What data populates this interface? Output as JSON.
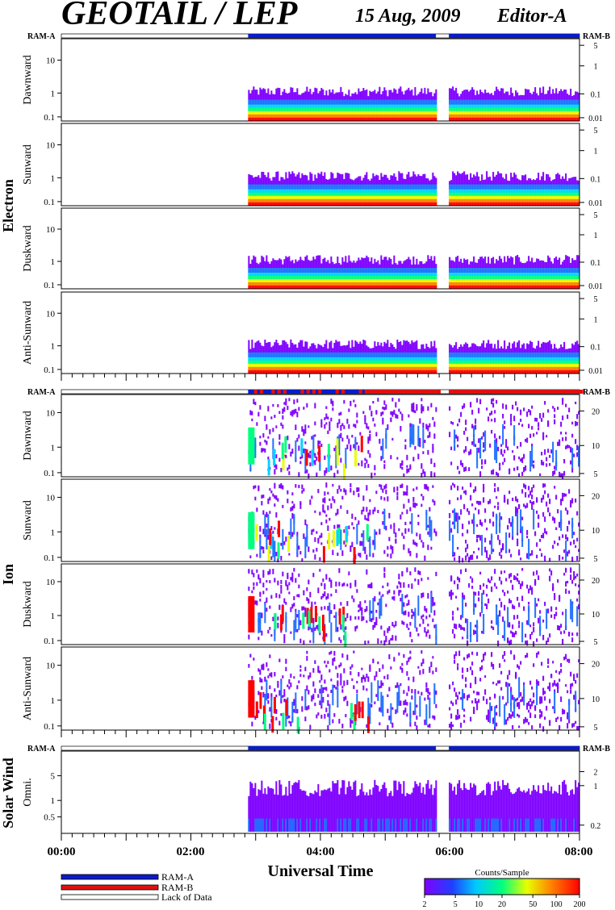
{
  "header": {
    "title": "GEOTAIL / LEP",
    "date": "15 Aug, 2009",
    "editor": "Editor-A"
  },
  "chart_data": {
    "type": "heatmap",
    "x_range_hours": [
      0,
      8
    ],
    "x_ticks": [
      "00:00",
      "02:00",
      "04:00",
      "06:00",
      "08:00"
    ],
    "xlabel": "Universal Time",
    "data_coverage": [
      {
        "start": "02:53",
        "end": "05:47"
      },
      {
        "start": "05:59",
        "end": "08:00"
      }
    ],
    "colors": {
      "ram_a": "#0a1cc8",
      "ram_b": "#e01010",
      "lack": "#ffffff",
      "scale": [
        "#7f00ff",
        "#1f6fff",
        "#00d4ff",
        "#00ff7f",
        "#e8ff00",
        "#ff8000",
        "#ff0000"
      ]
    },
    "groups": [
      {
        "name": "Electron",
        "ram_a_label": "RAM-A",
        "ram_b_label": "RAM-B",
        "mode_bar": "ram_a",
        "panels": [
          {
            "label": "Dawnward",
            "left_ticks": [
              "10",
              "1",
              "0.1"
            ],
            "right_ticks": [
              "5",
              "1",
              "0.1",
              "0.01"
            ]
          },
          {
            "label": "Sunward",
            "left_ticks": [
              "10",
              "1",
              "0.1"
            ],
            "right_ticks": [
              "5",
              "1",
              "0.1",
              "0.01"
            ]
          },
          {
            "label": "Duskward",
            "left_ticks": [
              "10",
              "1",
              "0.1"
            ],
            "right_ticks": [
              "5",
              "1",
              "0.1",
              "0.01"
            ]
          },
          {
            "label": "Anti-Sunward",
            "left_ticks": [
              "10",
              "1",
              "0.1"
            ],
            "right_ticks": [
              "5",
              "1",
              "0.1",
              "0.01"
            ]
          }
        ]
      },
      {
        "name": "Ion",
        "ram_a_label": "RAM-A",
        "ram_b_label": "RAM-B",
        "mode_bar": "mixed",
        "panels": [
          {
            "label": "Dawnward",
            "left_ticks": [
              "10",
              "1",
              "0.1"
            ],
            "right_ticks": [
              "20",
              "10",
              "5"
            ]
          },
          {
            "label": "Sunward",
            "left_ticks": [
              "10",
              "1",
              "0.1"
            ],
            "right_ticks": [
              "20",
              "10",
              "5"
            ]
          },
          {
            "label": "Duskward",
            "left_ticks": [
              "10",
              "1",
              "0.1"
            ],
            "right_ticks": [
              "20",
              "10",
              "5"
            ]
          },
          {
            "label": "Anti-Sunward",
            "left_ticks": [
              "10",
              "1",
              "0.1"
            ],
            "right_ticks": [
              "20",
              "10",
              "5"
            ]
          }
        ]
      },
      {
        "name": "Solar Wind",
        "ram_a_label": "RAM-A",
        "ram_b_label": "RAM-B",
        "mode_bar": "ram_a",
        "panels": [
          {
            "label": "Omni.",
            "left_ticks": [
              "5",
              "1",
              "0.5"
            ],
            "right_ticks": [
              "2",
              "1",
              "0.2"
            ]
          }
        ]
      }
    ],
    "legend": {
      "items": [
        {
          "label": "RAM-A",
          "color": "#0a1cc8"
        },
        {
          "label": "RAM-B",
          "color": "#e01010"
        },
        {
          "label": "Lack of Data",
          "color": "#ffffff"
        }
      ]
    },
    "colorbar": {
      "title": "Counts/Sample",
      "ticks": [
        "2",
        "5",
        "10",
        "20",
        "50",
        "100",
        "200"
      ]
    }
  }
}
